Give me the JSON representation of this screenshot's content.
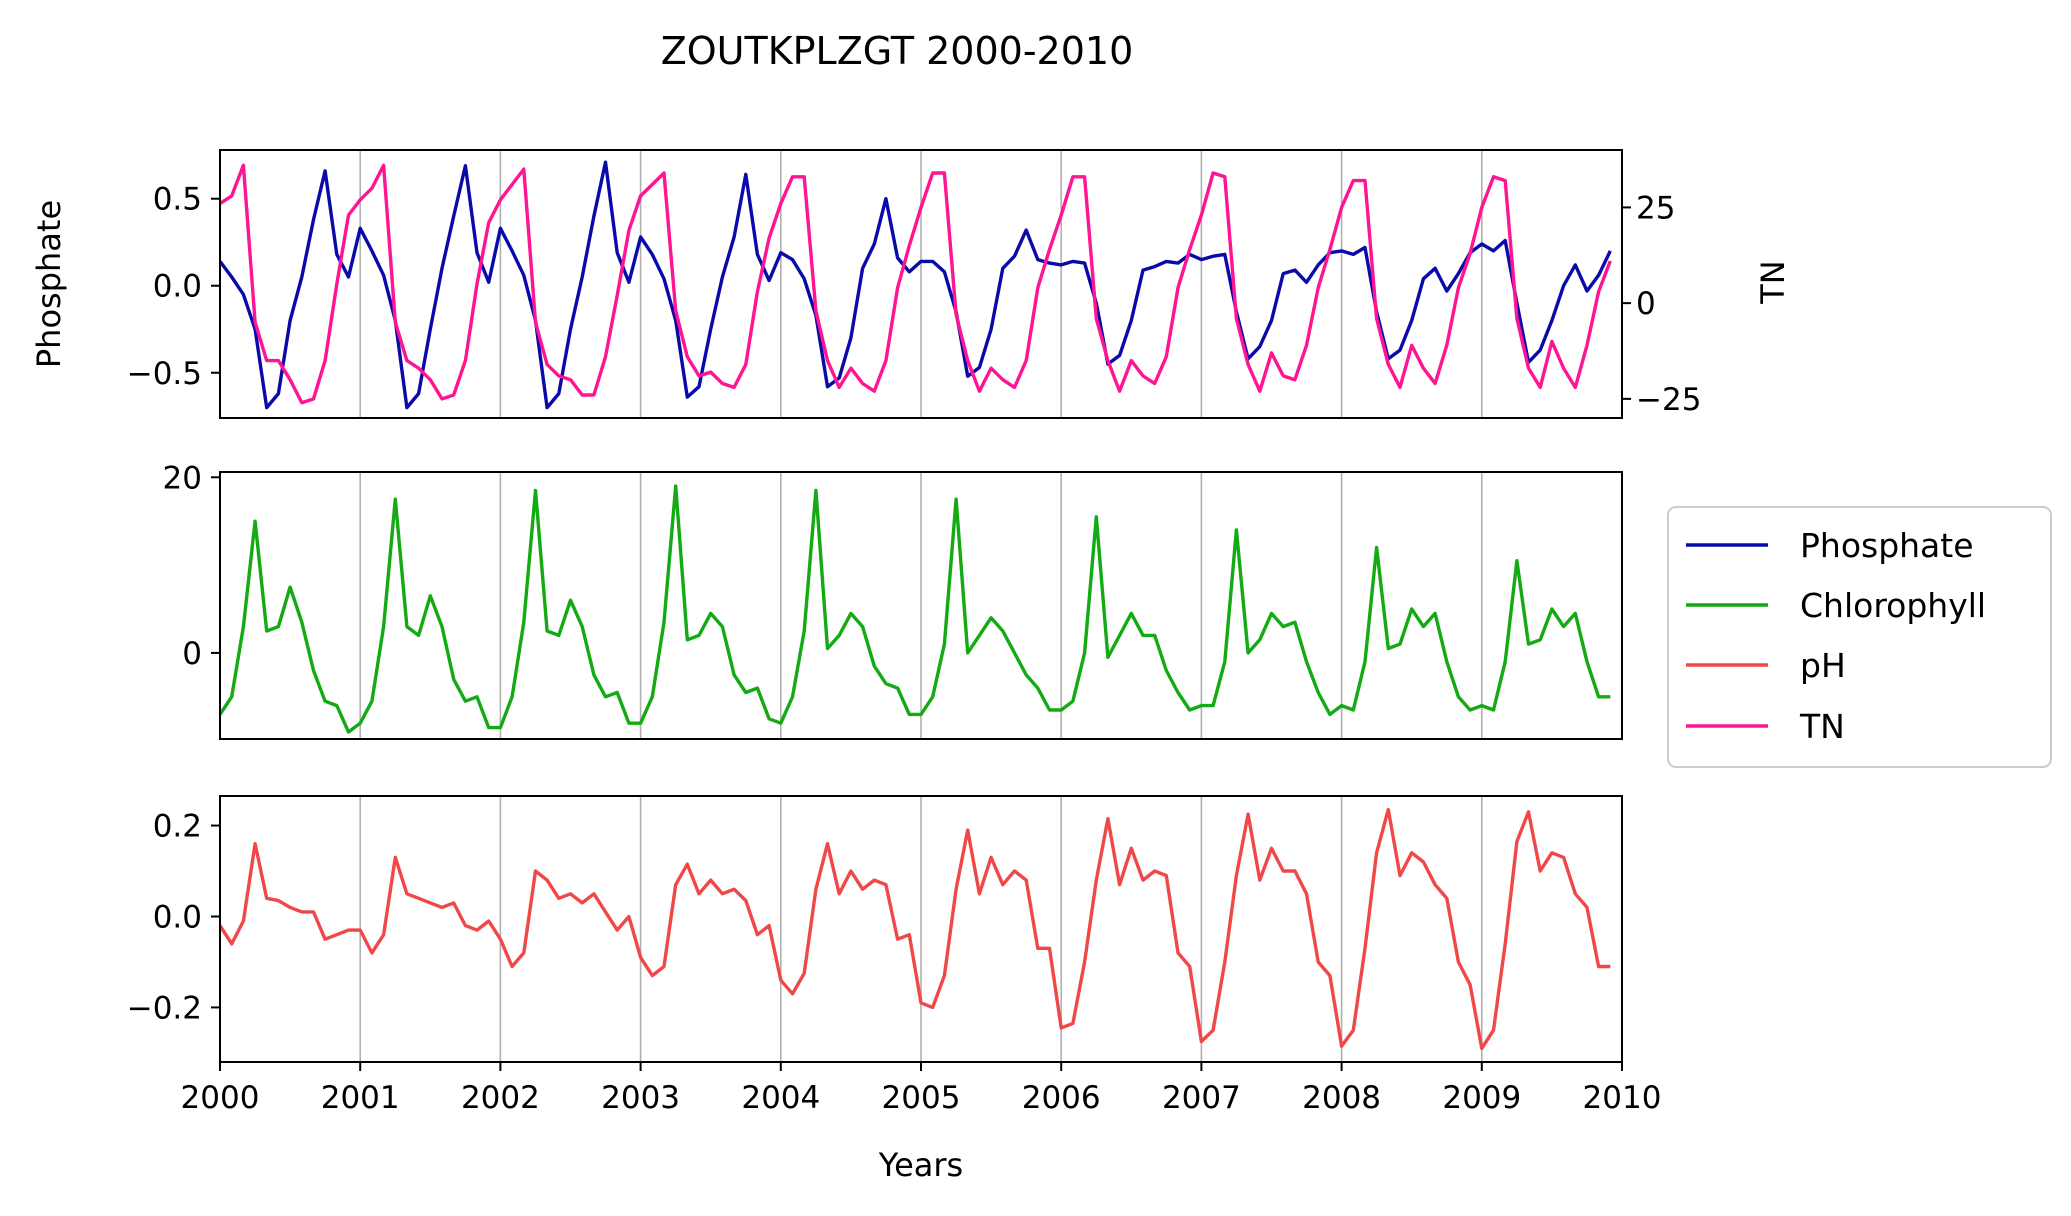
{
  "title": "ZOUTKPLZGT 2000-2010",
  "chart_data": {
    "type": "line",
    "title": "ZOUTKPLZGT 2000-2010",
    "xlabel": "Years",
    "x_ticks": [
      "2000",
      "2001",
      "2002",
      "2003",
      "2004",
      "2005",
      "2006",
      "2007",
      "2008",
      "2009",
      "2010"
    ],
    "xlim": [
      2000,
      2010
    ],
    "sampling": "monthly, 2000-01 to 2009-12",
    "grid": "vertical lines at year boundaries",
    "legend": {
      "placement": "right-middle",
      "entries": [
        "Phosphate",
        "Chlorophyll",
        "pH",
        "TN"
      ]
    },
    "panels": [
      {
        "ylabel_left": "Phosphate",
        "ylabel_right": "TN",
        "yticks_left": [
          "0.5",
          "0.0",
          "−0.5"
        ],
        "yticks_right": [
          "25",
          "0",
          "−25"
        ],
        "ylim_left": [
          -0.76,
          0.78
        ],
        "ylim_right": [
          -30,
          40
        ],
        "series": [
          {
            "name": "Phosphate",
            "axis": "left",
            "color": "#0a0aaa",
            "values": [
              0.14,
              0.05,
              -0.05,
              -0.25,
              -0.7,
              -0.62,
              -0.2,
              0.05,
              0.38,
              0.66,
              0.18,
              0.05,
              0.33,
              0.2,
              0.06,
              -0.2,
              -0.7,
              -0.62,
              -0.25,
              0.1,
              0.4,
              0.69,
              0.19,
              0.02,
              0.33,
              0.2,
              0.06,
              -0.2,
              -0.7,
              -0.62,
              -0.25,
              0.05,
              0.4,
              0.71,
              0.19,
              0.02,
              0.28,
              0.18,
              0.04,
              -0.2,
              -0.64,
              -0.58,
              -0.25,
              0.05,
              0.28,
              0.64,
              0.18,
              0.03,
              0.19,
              0.15,
              0.04,
              -0.17,
              -0.58,
              -0.53,
              -0.3,
              0.1,
              0.24,
              0.5,
              0.16,
              0.08,
              0.14,
              0.14,
              0.08,
              -0.15,
              -0.52,
              -0.47,
              -0.25,
              0.1,
              0.17,
              0.32,
              0.15,
              0.13,
              0.12,
              0.14,
              0.13,
              -0.1,
              -0.45,
              -0.4,
              -0.2,
              0.09,
              0.11,
              0.14,
              0.13,
              0.18,
              0.15,
              0.17,
              0.18,
              -0.15,
              -0.42,
              -0.35,
              -0.2,
              0.07,
              0.09,
              0.02,
              0.12,
              0.19,
              0.2,
              0.18,
              0.22,
              -0.15,
              -0.42,
              -0.37,
              -0.2,
              0.04,
              0.1,
              -0.03,
              0.07,
              0.19,
              0.24,
              0.2,
              0.26,
              -0.1,
              -0.44,
              -0.37,
              -0.2,
              0.0,
              0.12,
              -0.03,
              0.06,
              0.2
            ]
          },
          {
            "name": "TN",
            "axis": "right",
            "color": "#ff1493",
            "values": [
              26,
              28,
              36,
              -5,
              -15,
              -15,
              -20,
              -26,
              -25,
              -15,
              5,
              23,
              27,
              30,
              36,
              -5,
              -15,
              -17,
              -20,
              -25,
              -24,
              -15,
              5,
              21,
              27,
              31,
              35,
              -5,
              -16,
              -19,
              -20,
              -24,
              -24,
              -14,
              2,
              19,
              28,
              31,
              34,
              -2,
              -14,
              -19,
              -18,
              -21,
              -22,
              -16,
              3,
              17,
              26,
              33,
              33,
              -2,
              -15,
              -22,
              -17,
              -21,
              -23,
              -15,
              4,
              15,
              25,
              34,
              34,
              -3,
              -15,
              -23,
              -17,
              -20,
              -22,
              -15,
              4,
              14,
              23,
              33,
              33,
              -4,
              -15,
              -23,
              -15,
              -19,
              -21,
              -14,
              4,
              14,
              23,
              34,
              33,
              -4,
              -16,
              -23,
              -13,
              -19,
              -20,
              -11,
              4,
              14,
              25,
              32,
              32,
              -4,
              -16,
              -22,
              -11,
              -17,
              -21,
              -11,
              4,
              13,
              25,
              33,
              32,
              -4,
              -17,
              -22,
              -10,
              -17,
              -22,
              -11,
              3,
              11
            ]
          }
        ]
      },
      {
        "ylabel_left": "",
        "yticks_left": [
          "20",
          "0"
        ],
        "ylim_left": [
          -9.8,
          20.6
        ],
        "series": [
          {
            "name": "Chlorophyll",
            "axis": "left",
            "color": "#14aa14",
            "values": [
              -7.0,
              -5.0,
              3.0,
              15.0,
              2.5,
              3.0,
              7.5,
              3.5,
              -2.0,
              -5.5,
              -6.0,
              -9.0,
              -8.0,
              -5.5,
              3.0,
              17.5,
              3.0,
              2.0,
              6.5,
              3.0,
              -3.0,
              -5.5,
              -5.0,
              -8.5,
              -8.5,
              -5.0,
              3.5,
              18.5,
              2.5,
              2.0,
              6.0,
              3.0,
              -2.5,
              -5.0,
              -4.5,
              -8.0,
              -8.0,
              -5.0,
              3.5,
              19.0,
              1.5,
              2.0,
              4.5,
              3.0,
              -2.5,
              -4.5,
              -4.0,
              -7.5,
              -8.0,
              -5.0,
              2.5,
              18.5,
              0.5,
              2.0,
              4.5,
              3.0,
              -1.5,
              -3.5,
              -4.0,
              -7.0,
              -7.0,
              -5.0,
              1.0,
              17.5,
              0.0,
              2.0,
              4.0,
              2.5,
              0.0,
              -2.5,
              -4.0,
              -6.5,
              -6.5,
              -5.5,
              0.0,
              15.5,
              -0.5,
              2.0,
              4.5,
              2.0,
              2.0,
              -2.0,
              -4.5,
              -6.5,
              -6.0,
              -6.0,
              -1.0,
              14.0,
              0.0,
              1.5,
              4.5,
              3.0,
              3.5,
              -1.0,
              -4.5,
              -7.0,
              -6.0,
              -6.5,
              -1.0,
              12.0,
              0.5,
              1.0,
              5.0,
              3.0,
              4.5,
              -1.0,
              -5.0,
              -6.5,
              -6.0,
              -6.5,
              -1.0,
              10.5,
              1.0,
              1.5,
              5.0,
              3.0,
              4.5,
              -1.0,
              -5.0,
              -5.0
            ]
          }
        ]
      },
      {
        "ylabel_left": "",
        "yticks_left": [
          "0.2",
          "0.0",
          "−0.2"
        ],
        "ylim_left": [
          -0.32,
          0.265
        ],
        "series": [
          {
            "name": "pH",
            "axis": "left",
            "color": "#f04848",
            "values": [
              -0.02,
              -0.06,
              -0.01,
              0.16,
              0.04,
              0.035,
              0.02,
              0.01,
              0.01,
              -0.05,
              -0.04,
              -0.03,
              -0.03,
              -0.08,
              -0.04,
              0.13,
              0.05,
              0.04,
              0.03,
              0.02,
              0.03,
              -0.02,
              -0.03,
              -0.01,
              -0.05,
              -0.11,
              -0.08,
              0.1,
              0.08,
              0.04,
              0.05,
              0.03,
              0.05,
              0.01,
              -0.03,
              0.0,
              -0.09,
              -0.13,
              -0.11,
              0.07,
              0.115,
              0.05,
              0.08,
              0.05,
              0.06,
              0.035,
              -0.04,
              -0.02,
              -0.14,
              -0.17,
              -0.125,
              0.06,
              0.16,
              0.05,
              0.1,
              0.06,
              0.08,
              0.07,
              -0.05,
              -0.04,
              -0.19,
              -0.2,
              -0.13,
              0.06,
              0.19,
              0.05,
              0.13,
              0.07,
              0.1,
              0.08,
              -0.07,
              -0.07,
              -0.245,
              -0.235,
              -0.1,
              0.08,
              0.215,
              0.07,
              0.15,
              0.08,
              0.1,
              0.09,
              -0.08,
              -0.11,
              -0.275,
              -0.25,
              -0.1,
              0.09,
              0.225,
              0.08,
              0.15,
              0.1,
              0.1,
              0.05,
              -0.1,
              -0.13,
              -0.285,
              -0.25,
              -0.07,
              0.14,
              0.235,
              0.09,
              0.14,
              0.12,
              0.07,
              0.04,
              -0.1,
              -0.15,
              -0.29,
              -0.25,
              -0.06,
              0.165,
              0.23,
              0.1,
              0.14,
              0.13,
              0.05,
              0.02,
              -0.11,
              -0.11
            ]
          }
        ]
      }
    ]
  }
}
